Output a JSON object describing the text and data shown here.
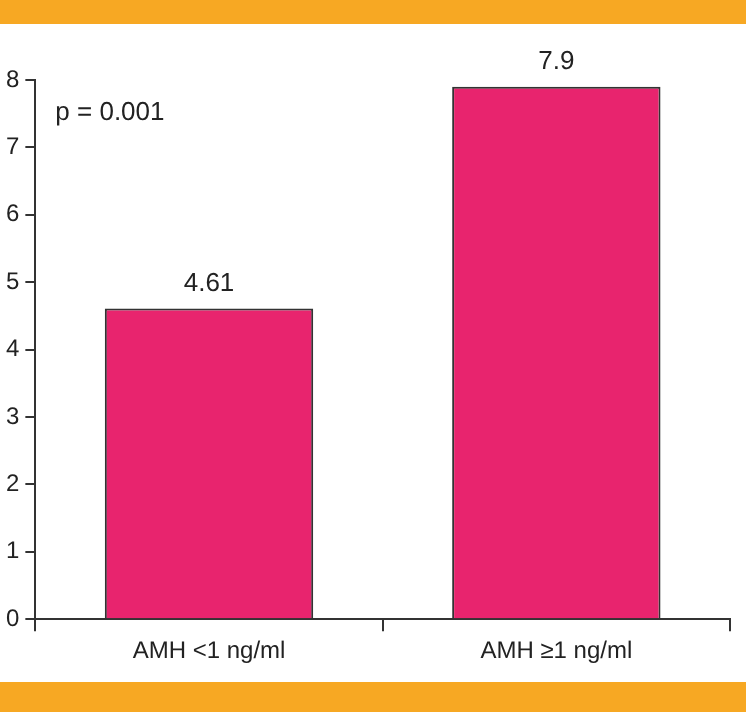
{
  "chart_data": {
    "type": "bar",
    "categories": [
      "AMH <1 ng/ml",
      "AMH ≥1 ng/ml"
    ],
    "values": [
      4.61,
      7.9
    ],
    "color": "#e8246e",
    "ylim": [
      0,
      8
    ],
    "yticks": [
      0,
      1,
      2,
      3,
      4,
      5,
      6,
      7,
      8
    ],
    "grid": false,
    "legend": false,
    "data_labels": true,
    "annotations": [
      "p = 0.001"
    ]
  }
}
